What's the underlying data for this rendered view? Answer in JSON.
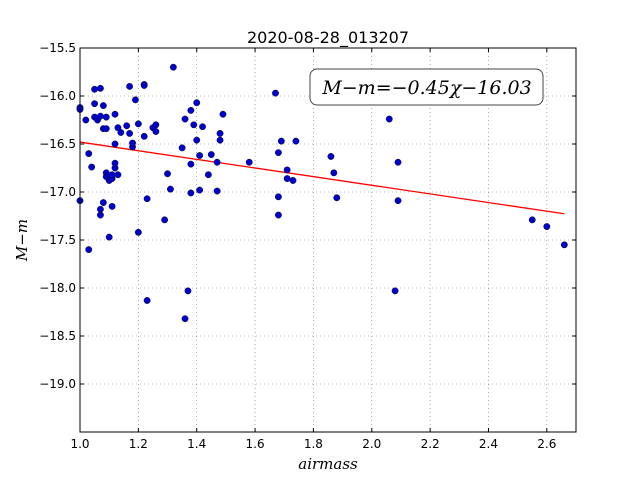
{
  "chart_data": {
    "type": "scatter",
    "title": "2020-08-28_013207",
    "xlabel": "airmass",
    "ylabel": "M−m",
    "xlim": [
      1.0,
      2.7
    ],
    "ylim": [
      -15.5,
      -19.5
    ],
    "y_inverted": true,
    "grid": true,
    "x_ticks": [
      1.0,
      1.2,
      1.4,
      1.6,
      1.8,
      2.0,
      2.2,
      2.4,
      2.6
    ],
    "x_tick_labels": [
      "1.0",
      "1.2",
      "1.4",
      "1.6",
      "1.8",
      "2.0",
      "2.2",
      "2.4",
      "2.6"
    ],
    "y_ticks": [
      -15.5,
      -16.0,
      -16.5,
      -17.0,
      -17.5,
      -18.0,
      -18.5,
      -19.0
    ],
    "y_tick_labels": [
      "−15.5",
      "−16.0",
      "−16.5",
      "−17.0",
      "−17.5",
      "−18.0",
      "−18.5",
      "−19.0"
    ],
    "annotation": "M−m=−0.45χ−16.03",
    "colors": {
      "points": "#0000cc",
      "fit": "#ff0000"
    },
    "fit": {
      "slope": -0.45,
      "intercept": -16.03,
      "x_range": [
        1.0,
        2.66
      ]
    },
    "points": [
      [
        1.0,
        -16.12
      ],
      [
        1.0,
        -16.14
      ],
      [
        1.0,
        -17.09
      ],
      [
        1.02,
        -16.25
      ],
      [
        1.03,
        -16.6
      ],
      [
        1.03,
        -17.6
      ],
      [
        1.04,
        -16.74
      ],
      [
        1.05,
        -16.22
      ],
      [
        1.05,
        -16.08
      ],
      [
        1.05,
        -15.93
      ],
      [
        1.06,
        -16.25
      ],
      [
        1.07,
        -15.92
      ],
      [
        1.07,
        -16.21
      ],
      [
        1.08,
        -16.34
      ],
      [
        1.08,
        -16.1
      ],
      [
        1.07,
        -17.24
      ],
      [
        1.07,
        -17.18
      ],
      [
        1.08,
        -17.11
      ],
      [
        1.09,
        -16.22
      ],
      [
        1.09,
        -16.34
      ],
      [
        1.09,
        -16.8
      ],
      [
        1.09,
        -16.84
      ],
      [
        1.1,
        -16.88
      ],
      [
        1.11,
        -16.86
      ],
      [
        1.1,
        -17.47
      ],
      [
        1.11,
        -16.82
      ],
      [
        1.12,
        -16.75
      ],
      [
        1.12,
        -16.7
      ],
      [
        1.13,
        -16.82
      ],
      [
        1.12,
        -16.5
      ],
      [
        1.13,
        -16.33
      ],
      [
        1.14,
        -16.38
      ],
      [
        1.12,
        -16.19
      ],
      [
        1.11,
        -17.15
      ],
      [
        1.16,
        -16.31
      ],
      [
        1.17,
        -16.39
      ],
      [
        1.17,
        -15.9
      ],
      [
        1.18,
        -16.53
      ],
      [
        1.18,
        -16.49
      ],
      [
        1.19,
        -16.04
      ],
      [
        1.2,
        -16.29
      ],
      [
        1.2,
        -17.42
      ],
      [
        1.22,
        -15.88
      ],
      [
        1.22,
        -15.89
      ],
      [
        1.22,
        -16.42
      ],
      [
        1.23,
        -17.07
      ],
      [
        1.23,
        -18.13
      ],
      [
        1.25,
        -16.33
      ],
      [
        1.26,
        -16.3
      ],
      [
        1.26,
        -16.37
      ],
      [
        1.29,
        -17.29
      ],
      [
        1.3,
        -16.81
      ],
      [
        1.31,
        -16.97
      ],
      [
        1.32,
        -15.7
      ],
      [
        1.35,
        -16.54
      ],
      [
        1.36,
        -16.24
      ],
      [
        1.36,
        -18.32
      ],
      [
        1.37,
        -18.03
      ],
      [
        1.38,
        -16.15
      ],
      [
        1.38,
        -16.71
      ],
      [
        1.38,
        -17.01
      ],
      [
        1.39,
        -16.3
      ],
      [
        1.4,
        -16.46
      ],
      [
        1.4,
        -16.07
      ],
      [
        1.41,
        -16.62
      ],
      [
        1.41,
        -16.98
      ],
      [
        1.42,
        -16.32
      ],
      [
        1.44,
        -16.82
      ],
      [
        1.45,
        -16.61
      ],
      [
        1.47,
        -16.69
      ],
      [
        1.47,
        -16.99
      ],
      [
        1.48,
        -16.46
      ],
      [
        1.48,
        -16.39
      ],
      [
        1.49,
        -16.19
      ],
      [
        1.58,
        -16.69
      ],
      [
        1.67,
        -15.97
      ],
      [
        1.68,
        -16.59
      ],
      [
        1.68,
        -17.05
      ],
      [
        1.68,
        -17.24
      ],
      [
        1.69,
        -16.47
      ],
      [
        1.71,
        -16.77
      ],
      [
        1.71,
        -16.86
      ],
      [
        1.73,
        -16.88
      ],
      [
        1.74,
        -16.47
      ],
      [
        1.86,
        -16.63
      ],
      [
        1.87,
        -16.8
      ],
      [
        1.88,
        -17.06
      ],
      [
        2.06,
        -16.24
      ],
      [
        2.08,
        -18.03
      ],
      [
        2.09,
        -16.69
      ],
      [
        2.09,
        -17.09
      ],
      [
        2.55,
        -17.29
      ],
      [
        2.6,
        -17.36
      ],
      [
        2.66,
        -17.55
      ]
    ]
  }
}
